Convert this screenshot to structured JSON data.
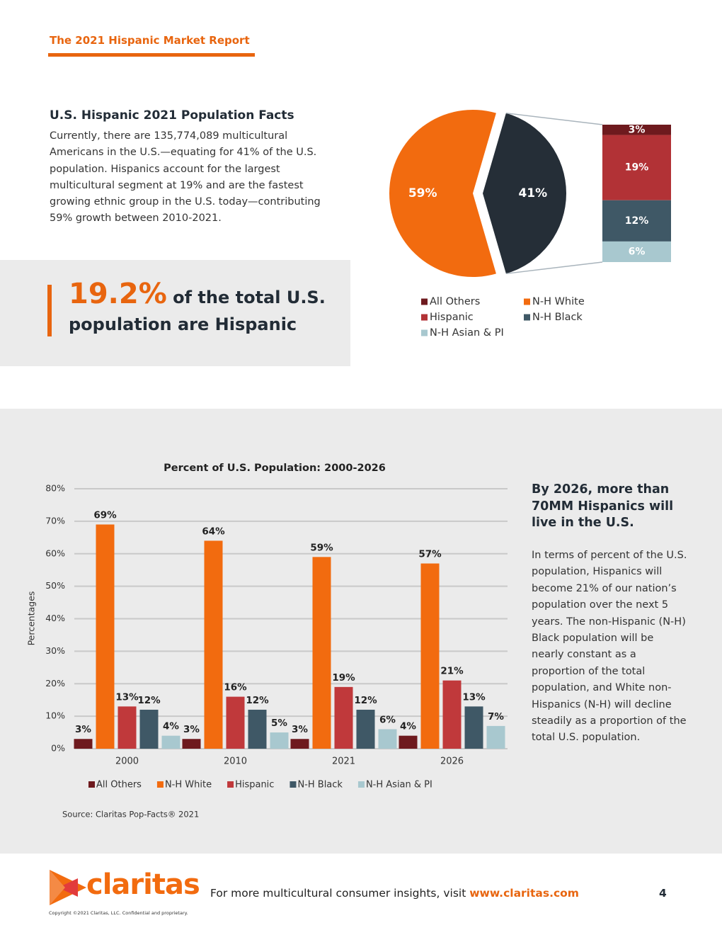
{
  "header": {
    "title": "The 2021 Hispanic Market Report"
  },
  "facts": {
    "title": "U.S. Hispanic 2021 Population Facts",
    "text": "Currently, there are 135,774,089 multicultural Americans in the U.S.—equating for 41% of the U.S. population. Hispanics account for the largest multicultural segment at 19% and are the fastest growing ethnic group in the U.S. today—contributing 59% growth between 2010-2021."
  },
  "callout": {
    "highlight": "19.2%",
    "text": "of the total U.S. population are Hispanic"
  },
  "chart_data": [
    {
      "type": "pie-of-bar",
      "values": [
        59,
        41
      ],
      "value_labels": [
        "59%",
        "41%"
      ],
      "colors": [
        "#f26b0f",
        "#252e37"
      ],
      "breakdown": {
        "values": [
          3,
          19,
          12,
          6
        ],
        "value_labels": [
          "3%",
          "19%",
          "12%",
          "6%"
        ],
        "colors": [
          "#6e1a1e",
          "#b23236",
          "#3f5866",
          "#a8c8cf"
        ]
      },
      "legend": [
        {
          "name": "All Others",
          "color": "#6e1a1e"
        },
        {
          "name": "N-H White",
          "color": "#f26b0f"
        },
        {
          "name": "Hispanic",
          "color": "#b23236"
        },
        {
          "name": "N-H Black",
          "color": "#3f5866"
        },
        {
          "name": "N-H Asian & PI",
          "color": "#a8c8cf"
        }
      ]
    },
    {
      "type": "bar",
      "title": "Percent of U.S. Population: 2000-2026",
      "y_label": "Percentages",
      "categories": [
        "2000",
        "2010",
        "2021",
        "2026"
      ],
      "series": [
        {
          "name": "All Others",
          "color": "#6e1a1e",
          "values": [
            3,
            3,
            3,
            4
          ],
          "value_labels": [
            "3%",
            "3%",
            "3%",
            "4%"
          ]
        },
        {
          "name": "N-H White",
          "color": "#f26b0f",
          "values": [
            69,
            64,
            59,
            57
          ],
          "value_labels": [
            "69%",
            "64%",
            "59%",
            "57%"
          ]
        },
        {
          "name": "Hispanic",
          "color": "#c0393b",
          "values": [
            13,
            16,
            19,
            21
          ],
          "value_labels": [
            "13%",
            "16%",
            "19%",
            "21%"
          ]
        },
        {
          "name": "N-H Black",
          "color": "#3f5866",
          "values": [
            12,
            12,
            12,
            13
          ],
          "value_labels": [
            "12%",
            "12%",
            "12%",
            "13%"
          ]
        },
        {
          "name": "N-H Asian & PI",
          "color": "#a8c8cf",
          "values": [
            4,
            5,
            6,
            7
          ],
          "value_labels": [
            "4%",
            "5%",
            "6%",
            "7%"
          ]
        }
      ],
      "ylim": [
        0,
        80
      ],
      "yticks": [
        {
          "value": 0,
          "label": "0%"
        },
        {
          "value": 10,
          "label": "10%"
        },
        {
          "value": 20,
          "label": "20%"
        },
        {
          "value": 30,
          "label": "30%"
        },
        {
          "value": 40,
          "label": "40%"
        },
        {
          "value": 50,
          "label": "50%"
        },
        {
          "value": 60,
          "label": "60%"
        },
        {
          "value": 70,
          "label": "70%"
        },
        {
          "value": 80,
          "label": "80%"
        }
      ],
      "grid": true,
      "source": "Source: Claritas Pop-Facts® 2021"
    }
  ],
  "sidebar": {
    "title": "By 2026, more than 70MM Hispanics will live in the U.S.",
    "text": "In terms of percent of the U.S. population, Hispanics will become 21% of our nation’s population over the next 5 years. The non-Hispanic (N-H) Black population will be nearly constant as a proportion of the total population, and White non-Hispanics (N-H) will decline steadily as a proportion of the total U.S. population."
  },
  "footer": {
    "logo": "claritas",
    "text": "For more multicultural consumer insights, visit",
    "link": "www.claritas.com",
    "page": "4",
    "copyright": "Copyright ©2021 Claritas, LLC. Confidential and proprietary."
  }
}
